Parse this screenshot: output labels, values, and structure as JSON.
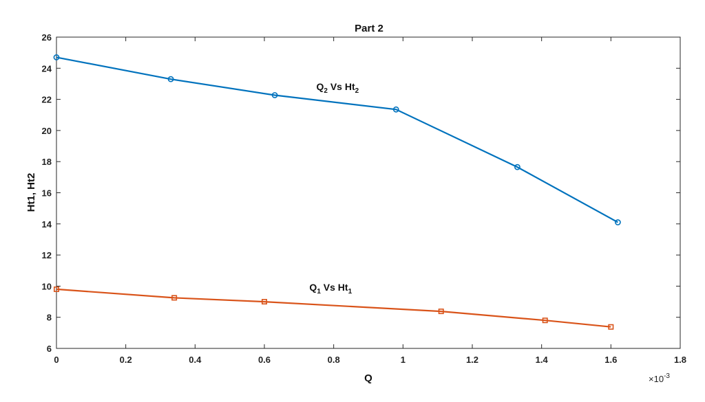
{
  "chart_data": {
    "type": "line",
    "title": "Part 2",
    "xlabel": "Q",
    "ylabel": "Ht1, Ht2",
    "x_exponent_label": "×10",
    "x_exponent_power": "-3",
    "xlim": [
      0,
      1.8
    ],
    "ylim": [
      6,
      26
    ],
    "xticks": [
      0,
      0.2,
      0.4,
      0.6,
      0.8,
      1,
      1.2,
      1.4,
      1.6,
      1.8
    ],
    "xtick_labels": [
      "0",
      "0.2",
      "0.4",
      "0.6",
      "0.8",
      "1",
      "1.2",
      "1.4",
      "1.6",
      "1.8"
    ],
    "yticks": [
      6,
      8,
      10,
      12,
      14,
      16,
      18,
      20,
      22,
      24,
      26
    ],
    "ytick_labels": [
      "6",
      "8",
      "10",
      "12",
      "14",
      "16",
      "18",
      "20",
      "22",
      "24",
      "26"
    ],
    "grid": false,
    "series": [
      {
        "color": "#0072BD",
        "marker": "circle",
        "x": [
          0,
          0.33,
          0.63,
          0.98,
          1.33,
          1.62
        ],
        "y": [
          24.7,
          23.3,
          22.27,
          21.35,
          17.65,
          14.1
        ]
      },
      {
        "color": "#D95319",
        "marker": "square",
        "x": [
          0,
          0.34,
          0.6,
          1.11,
          1.41,
          1.6
        ],
        "y": [
          9.8,
          9.25,
          9.0,
          8.38,
          7.8,
          7.38
        ]
      }
    ],
    "annotations": [
      {
        "main1": "Q",
        "sub1": "2",
        "main2": " Vs Ht",
        "sub2": "2",
        "x": 0.75,
        "y": 22.6
      },
      {
        "main1": "Q",
        "sub1": "1",
        "main2": " Vs Ht",
        "sub2": "1",
        "x": 0.73,
        "y": 9.7
      }
    ]
  }
}
